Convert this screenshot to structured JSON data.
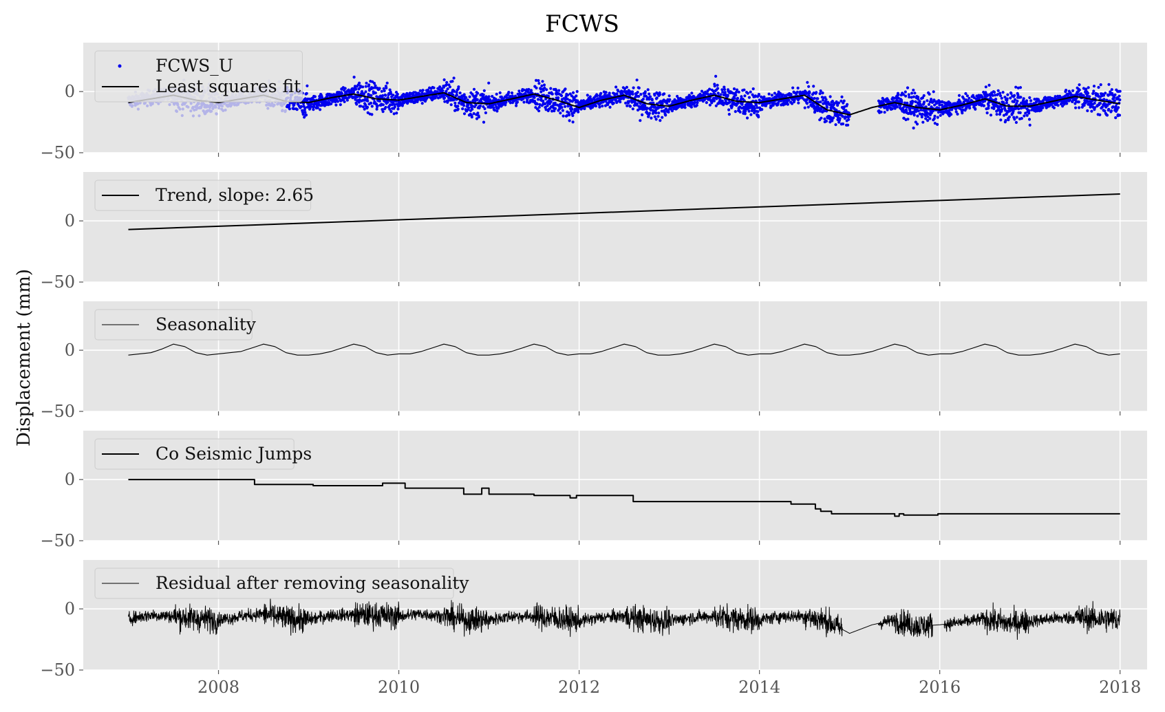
{
  "figure": {
    "title": "FCWS",
    "ylabel": "Displacement (mm)"
  },
  "colors": {
    "panel_bg": "#e5e5e5",
    "grid": "#ffffff",
    "line": "#000000",
    "scatter_primary": "#0000ee",
    "scatter_faded": "#b4b4e8"
  },
  "chart_data": [
    {
      "type": "scatter",
      "legend": [
        "FCWS_U",
        "Least squares fit"
      ],
      "xlim": [
        2006.5,
        2018.3
      ],
      "ylim": [
        -50,
        40
      ],
      "yticks": [
        -50,
        0
      ],
      "xticks": [
        2008,
        2010,
        2012,
        2014,
        2016,
        2018
      ],
      "series": [
        {
          "name": "FCWS_U",
          "x": [
            2007.0,
            2007.25,
            2007.5,
            2007.75,
            2008.0,
            2008.25,
            2008.5,
            2008.75,
            2009.0,
            2009.25,
            2009.5,
            2009.75,
            2010.0,
            2010.25,
            2010.5,
            2010.75,
            2011.0,
            2011.25,
            2011.5,
            2011.75,
            2012.0,
            2012.25,
            2012.5,
            2012.75,
            2013.0,
            2013.25,
            2013.5,
            2013.75,
            2014.0,
            2014.25,
            2014.5,
            2014.75,
            2015.0,
            2015.25,
            2015.5,
            2015.75,
            2016.0,
            2016.25,
            2016.5,
            2016.75,
            2017.0,
            2017.25,
            2017.5,
            2017.75,
            2018.0
          ],
          "y": [
            -8,
            -5,
            -3,
            -7,
            -9,
            -6,
            -2,
            -8,
            -10,
            -6,
            -1,
            -5,
            -7,
            -4,
            0,
            -9,
            -10,
            -6,
            -2,
            -7,
            -12,
            -7,
            -3,
            -10,
            -12,
            -7,
            -3,
            -8,
            -10,
            -6,
            -3,
            -14,
            -19,
            -13,
            -9,
            -13,
            -15,
            -11,
            -6,
            -12,
            -12,
            -8,
            -4,
            -7,
            -10
          ]
        },
        {
          "name": "Least squares fit",
          "x": [
            2007.0,
            2007.25,
            2007.5,
            2007.75,
            2008.0,
            2008.25,
            2008.5,
            2008.75,
            2009.0,
            2009.25,
            2009.5,
            2009.75,
            2010.0,
            2010.25,
            2010.5,
            2010.75,
            2011.0,
            2011.25,
            2011.5,
            2011.75,
            2012.0,
            2012.25,
            2012.5,
            2012.75,
            2013.0,
            2013.25,
            2013.5,
            2013.75,
            2014.0,
            2014.25,
            2014.5,
            2014.75,
            2015.0,
            2015.25,
            2015.5,
            2015.75,
            2016.0,
            2016.25,
            2016.5,
            2016.75,
            2017.0,
            2017.25,
            2017.5,
            2017.75,
            2018.0
          ],
          "y": [
            -9,
            -6,
            -3,
            -7,
            -9,
            -6,
            -3,
            -8,
            -9,
            -5,
            -2,
            -6,
            -7,
            -4,
            -1,
            -9,
            -10,
            -6,
            -2,
            -7,
            -13,
            -7,
            -3,
            -10,
            -12,
            -7,
            -3,
            -8,
            -9,
            -6,
            -3,
            -15,
            -19,
            -13,
            -9,
            -13,
            -15,
            -11,
            -6,
            -12,
            -12,
            -8,
            -4,
            -7,
            -10
          ]
        }
      ]
    },
    {
      "type": "line",
      "legend": [
        "Trend, slope: 2.65"
      ],
      "xlim": [
        2006.5,
        2018.3
      ],
      "ylim": [
        -50,
        40
      ],
      "yticks": [
        -50,
        0
      ],
      "xticks": [
        2008,
        2010,
        2012,
        2014,
        2016,
        2018
      ],
      "series": [
        {
          "name": "Trend, slope: 2.65",
          "x": [
            2007.0,
            2018.0
          ],
          "y": [
            -7.0,
            22.0
          ]
        }
      ]
    },
    {
      "type": "line",
      "legend": [
        "Seasonality"
      ],
      "xlim": [
        2006.5,
        2018.3
      ],
      "ylim": [
        -50,
        40
      ],
      "yticks": [
        -50,
        0
      ],
      "xticks": [
        2008,
        2010,
        2012,
        2014,
        2016,
        2018
      ],
      "series": [
        {
          "name": "Seasonality",
          "x": [
            2007.0,
            2007.125,
            2007.25,
            2007.375,
            2007.5,
            2007.625,
            2007.75,
            2007.875,
            2008.0,
            2008.125,
            2008.25,
            2008.375,
            2008.5,
            2008.625,
            2008.75,
            2008.875,
            2009.0,
            2009.125,
            2009.25,
            2009.375,
            2009.5,
            2009.625,
            2009.75,
            2009.875,
            2010.0,
            2010.125,
            2010.25,
            2010.375,
            2010.5,
            2010.625,
            2010.75,
            2010.875,
            2011.0,
            2011.125,
            2011.25,
            2011.375,
            2011.5,
            2011.625,
            2011.75,
            2011.875,
            2012.0,
            2012.125,
            2012.25,
            2012.375,
            2012.5,
            2012.625,
            2012.75,
            2012.875,
            2013.0,
            2013.125,
            2013.25,
            2013.375,
            2013.5,
            2013.625,
            2013.75,
            2013.875,
            2014.0,
            2014.125,
            2014.25,
            2014.375,
            2014.5,
            2014.625,
            2014.75,
            2014.875,
            2015.0,
            2015.125,
            2015.25,
            2015.375,
            2015.5,
            2015.625,
            2015.75,
            2015.875,
            2016.0,
            2016.125,
            2016.25,
            2016.375,
            2016.5,
            2016.625,
            2016.75,
            2016.875,
            2017.0,
            2017.125,
            2017.25,
            2017.375,
            2017.5,
            2017.625,
            2017.75,
            2017.875,
            2018.0
          ],
          "y": [
            -4,
            -3,
            -2,
            1,
            5,
            3,
            -2,
            -4,
            -3,
            -2,
            -1,
            2,
            5,
            3,
            -2,
            -4,
            -4,
            -3,
            -1,
            2,
            5,
            3,
            -2,
            -4,
            -3,
            -3,
            -1,
            2,
            5,
            3,
            -2,
            -4,
            -4,
            -3,
            -1,
            2,
            5,
            3,
            -2,
            -4,
            -3,
            -3,
            -1,
            2,
            5,
            3,
            -2,
            -4,
            -4,
            -3,
            -1,
            2,
            5,
            3,
            -2,
            -4,
            -3,
            -3,
            -1,
            2,
            5,
            3,
            -2,
            -4,
            -4,
            -3,
            -1,
            2,
            5,
            3,
            -2,
            -4,
            -3,
            -3,
            -1,
            2,
            5,
            3,
            -2,
            -4,
            -4,
            -3,
            -1,
            2,
            5,
            3,
            -2,
            -4,
            -3
          ]
        }
      ]
    },
    {
      "type": "line",
      "legend": [
        "Co Seismic Jumps"
      ],
      "xlim": [
        2006.5,
        2018.3
      ],
      "ylim": [
        -50,
        40
      ],
      "yticks": [
        -50,
        0
      ],
      "xticks": [
        2008,
        2010,
        2012,
        2014,
        2016,
        2018
      ],
      "series": [
        {
          "name": "Co Seismic Jumps",
          "x": [
            2007.0,
            2008.4,
            2008.4,
            2009.05,
            2009.05,
            2009.82,
            2009.82,
            2010.07,
            2010.07,
            2010.72,
            2010.72,
            2010.92,
            2010.92,
            2011.0,
            2011.0,
            2011.5,
            2011.5,
            2011.9,
            2011.9,
            2011.97,
            2011.97,
            2012.6,
            2012.6,
            2014.35,
            2014.35,
            2014.62,
            2014.62,
            2014.68,
            2014.68,
            2014.8,
            2014.8,
            2015.5,
            2015.5,
            2015.55,
            2015.55,
            2015.6,
            2015.6,
            2015.98,
            2015.98,
            2018.0
          ],
          "y": [
            0,
            0,
            -4,
            -4,
            -5,
            -5,
            -3,
            -3,
            -7,
            -7,
            -12,
            -12,
            -7,
            -7,
            -12,
            -12,
            -13,
            -13,
            -15,
            -15,
            -13,
            -13,
            -18,
            -18,
            -20,
            -20,
            -24,
            -24,
            -26,
            -26,
            -28,
            -28,
            -30,
            -30,
            -28,
            -28,
            -29,
            -29,
            -28,
            -28
          ]
        }
      ]
    },
    {
      "type": "line",
      "legend": [
        "Residual after removing seasonality"
      ],
      "xlim": [
        2006.5,
        2018.3
      ],
      "ylim": [
        -50,
        40
      ],
      "yticks": [
        -50,
        0
      ],
      "xticks": [
        2008,
        2010,
        2012,
        2014,
        2016,
        2018
      ],
      "xlabels": [
        "2008",
        "2010",
        "2012",
        "2014",
        "2016",
        "2018"
      ],
      "series": [
        {
          "name": "Residual after removing seasonality",
          "x": [
            2007.0,
            2007.25,
            2007.5,
            2007.75,
            2008.0,
            2008.25,
            2008.5,
            2008.75,
            2009.0,
            2009.25,
            2009.5,
            2009.75,
            2010.0,
            2010.25,
            2010.5,
            2010.75,
            2011.0,
            2011.25,
            2011.5,
            2011.75,
            2012.0,
            2012.25,
            2012.5,
            2012.75,
            2013.0,
            2013.25,
            2013.5,
            2013.75,
            2014.0,
            2014.25,
            2014.5,
            2014.75,
            2015.0,
            2015.25,
            2015.5,
            2015.75,
            2016.0,
            2016.25,
            2016.5,
            2016.75,
            2017.0,
            2017.25,
            2017.5,
            2017.75,
            2018.0
          ],
          "y": [
            -8,
            -5,
            -6,
            -8,
            -9,
            -6,
            -4,
            -8,
            -9,
            -5,
            -5,
            -5,
            -6,
            -4,
            -6,
            -9,
            -9,
            -6,
            -6,
            -8,
            -10,
            -7,
            -6,
            -9,
            -10,
            -7,
            -6,
            -8,
            -9,
            -6,
            -6,
            -10,
            -20,
            -13,
            -9,
            -14,
            -13,
            -11,
            -8,
            -12,
            -10,
            -8,
            -7,
            -8,
            -9
          ]
        }
      ]
    }
  ]
}
